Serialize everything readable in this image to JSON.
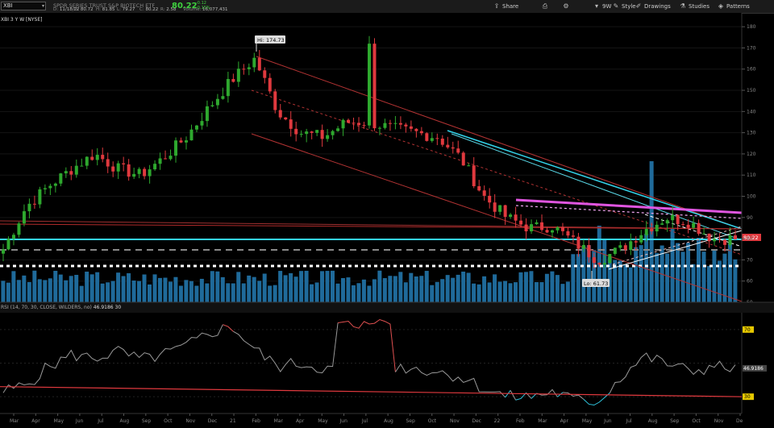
{
  "toolbar": {
    "symbol": "XBI",
    "description": "SPDR SERIES TRUST S&P BIOTECH ETF",
    "last": "80.22",
    "change_lines": [
      "-0.12",
      "-0.15%"
    ],
    "quote_items": [
      {
        "label": "D:",
        "value": "11/18/22"
      },
      {
        "label": "O:",
        "value": "80.72"
      },
      {
        "label": "H:",
        "value": "81.85"
      },
      {
        "label": "L:",
        "value": "79.27"
      },
      {
        "label": "C:",
        "value": "80.22"
      },
      {
        "label": "R:",
        "value": "2.58"
      },
      {
        "label": "Volume:",
        "value": "16,077,431"
      }
    ],
    "buttons": [
      {
        "label": "Share",
        "icon": "share-icon"
      },
      {
        "label": "",
        "icon": "print-icon"
      },
      {
        "label": "",
        "icon": "settings-gear-icon"
      },
      {
        "label": "9W",
        "icon": "chevron-down-icon"
      },
      {
        "label": "Style",
        "icon": "pencil-icon"
      },
      {
        "label": "Drawings",
        "icon": "drawings-icon"
      },
      {
        "label": "Studies",
        "icon": "studies-icon"
      },
      {
        "label": "Patterns",
        "icon": "patterns-icon"
      }
    ]
  },
  "price_panel": {
    "legend": "XBI 3 Y W [NYSE]",
    "high_label": "Hi: 174.73",
    "low_label": "Lo: 61.73",
    "last_price_marker": "80.22",
    "y_ticks": [
      "180",
      "170",
      "160",
      "150",
      "140",
      "130",
      "120",
      "110",
      "100",
      "90",
      "80",
      "70",
      "60",
      "50"
    ]
  },
  "rsi_panel": {
    "legend": "RSI (14, 70, 30, CLOSE, WILDERS, no)",
    "current_value": "46.9186",
    "legend_extra": "30",
    "y_ticks": [
      "70",
      "50",
      "30"
    ],
    "overbought_marker": "70",
    "oversold_marker": "30",
    "value_marker": "46.9186"
  },
  "x_axis": {
    "labels": [
      "Mar",
      "Apr",
      "May",
      "Jun",
      "Jul",
      "Aug",
      "Sep",
      "Oct",
      "Nov",
      "Dec",
      "21",
      "Feb",
      "Mar",
      "Apr",
      "May",
      "Jun",
      "Jul",
      "Aug",
      "Sep",
      "Oct",
      "Nov",
      "Dec",
      "22",
      "Feb",
      "Mar",
      "Apr",
      "May",
      "Jun",
      "Jul",
      "Aug",
      "Sep",
      "Oct",
      "Nov",
      "De"
    ]
  },
  "colors": {
    "up": "#2ea82e",
    "down": "#e0393e",
    "volume": "#1f6a9a",
    "cyan": "#33d3ea",
    "magenta": "#e055e0",
    "trend_red": "#b33333",
    "rsi_line": "#999999",
    "rsi_oversold": "#2fc7e0",
    "rsi_overbought": "#e05050"
  },
  "chart_data": {
    "type": "candlestick",
    "title": "XBI 3 Y W [NYSE]",
    "ylim": [
      50,
      185
    ],
    "series": [
      {
        "name": "weekly_close_approx",
        "x": [
          "2020-03",
          "2020-04",
          "2020-05",
          "2020-06",
          "2020-07",
          "2020-08",
          "2020-09",
          "2020-10",
          "2020-11",
          "2020-12",
          "2021-01",
          "2021-02",
          "2021-03",
          "2021-04",
          "2021-05",
          "2021-06",
          "2021-07",
          "2021-08",
          "2021-09",
          "2021-10",
          "2021-11",
          "2021-12",
          "2022-01",
          "2022-02",
          "2022-03",
          "2022-04",
          "2022-05",
          "2022-06",
          "2022-07",
          "2022-08",
          "2022-09",
          "2022-10",
          "2022-11"
        ],
        "values": [
          75,
          95,
          105,
          113,
          120,
          113,
          110,
          118,
          128,
          142,
          155,
          165,
          140,
          130,
          128,
          135,
          135,
          132,
          130,
          128,
          118,
          100,
          90,
          85,
          86,
          78,
          70,
          75,
          84,
          90,
          88,
          80,
          80
        ]
      }
    ],
    "annotations": {
      "high": 174.73,
      "low": 61.73,
      "last": 80.22
    },
    "rsi": {
      "params": "14, 70, 30, CLOSE, WILDERS",
      "ylim": [
        20,
        80
      ],
      "overbought": 70,
      "oversold": 30,
      "last": 46.9186,
      "values": [
        33,
        37,
        48,
        55,
        53,
        57,
        52,
        55,
        60,
        68,
        72,
        58,
        48,
        50,
        47,
        45,
        50,
        48,
        47,
        45,
        42,
        35,
        30,
        30,
        33,
        28,
        27,
        42,
        54,
        50,
        45,
        48,
        47
      ]
    }
  }
}
